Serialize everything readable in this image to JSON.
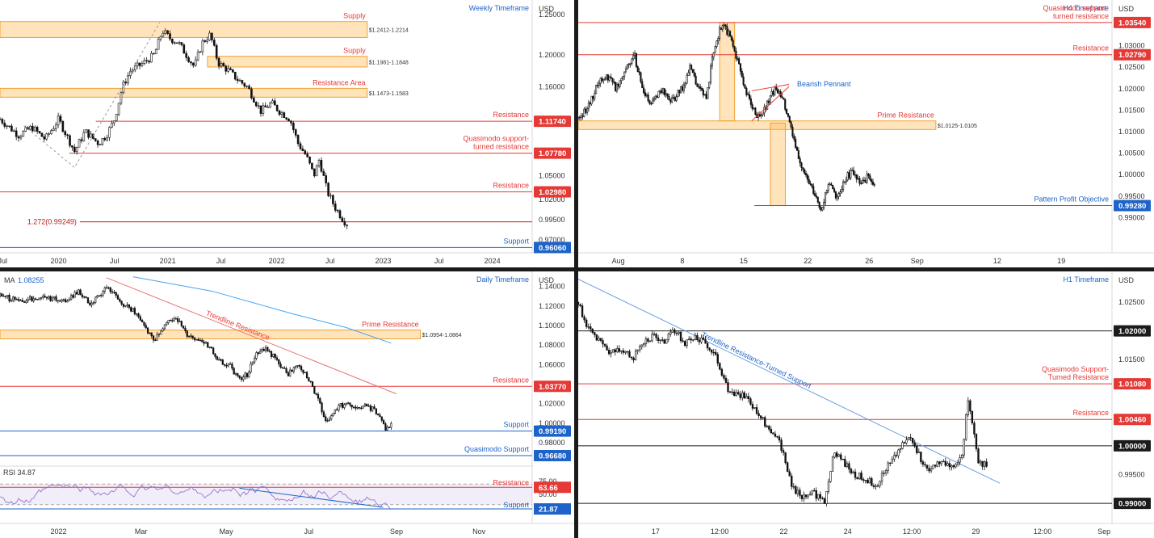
{
  "chart_data": [
    {
      "type": "candlestick",
      "title": "Weekly Timeframe",
      "currency": "USD",
      "ylim": [
        0.955,
        1.262
      ],
      "y_ticks": [
        {
          "v": 1.25,
          "l": "1.25000"
        },
        {
          "v": 1.2,
          "l": "1.20000"
        },
        {
          "v": 1.16,
          "l": "1.16000"
        },
        {
          "v": 1.05,
          "l": "1.05000"
        },
        {
          "v": 1.02,
          "l": "1.02000"
        },
        {
          "v": 0.995,
          "l": "0.99500"
        },
        {
          "v": 0.97,
          "l": "0.97000"
        }
      ],
      "x_ticks": [
        {
          "x": 0.005,
          "l": "Jul"
        },
        {
          "x": 0.11,
          "l": "2020"
        },
        {
          "x": 0.215,
          "l": "Jul"
        },
        {
          "x": 0.315,
          "l": "2021"
        },
        {
          "x": 0.415,
          "l": "Jul"
        },
        {
          "x": 0.52,
          "l": "2022"
        },
        {
          "x": 0.62,
          "l": "Jul"
        },
        {
          "x": 0.72,
          "l": "2023"
        },
        {
          "x": 0.825,
          "l": "Jul"
        },
        {
          "x": 0.925,
          "l": "2024"
        }
      ],
      "zones": [
        {
          "label": "Supply",
          "range_label": "$1.2412-1.2214",
          "y1": 1.2412,
          "y2": 1.2214,
          "x1": 0,
          "x2": 0.69
        },
        {
          "label": "Supply",
          "range_label": "$1.1981-1.1848",
          "y1": 1.1981,
          "y2": 1.1848,
          "x1": 0.39,
          "x2": 0.69
        },
        {
          "label": "Resistance Area",
          "range_label": "$1.1473-1.1583",
          "y1": 1.1583,
          "y2": 1.1473,
          "x1": 0,
          "x2": 0.69
        }
      ],
      "levels": [
        {
          "label": "Resistance",
          "value": 1.1174,
          "badge": "1.11740",
          "color": "#e53935",
          "x1": 0.18
        },
        {
          "label": "Quasimodo support-\nturned resistance",
          "value": 1.0778,
          "badge": "1.07780",
          "color": "#e53935",
          "x1": 0.13
        },
        {
          "label": "Resistance",
          "value": 1.0298,
          "badge": "1.02980",
          "color": "#e53935",
          "x1": 0
        },
        {
          "label": "1.272(0.99249)",
          "value": 0.99249,
          "badge": "",
          "color": "#b71c1c",
          "x1": 0.15
        },
        {
          "label": "Support",
          "value": 0.9606,
          "badge": "0.96060",
          "color": "#1e63c8",
          "x1": 0
        }
      ],
      "path": [
        [
          0,
          1.12
        ],
        [
          0.035,
          1.1
        ],
        [
          0.06,
          1.11
        ],
        [
          0.085,
          1.095
        ],
        [
          0.11,
          1.12
        ],
        [
          0.14,
          1.08
        ],
        [
          0.16,
          1.105
        ],
        [
          0.185,
          1.09
        ],
        [
          0.2,
          1.1
        ],
        [
          0.215,
          1.12
        ],
        [
          0.23,
          1.16
        ],
        [
          0.245,
          1.18
        ],
        [
          0.27,
          1.19
        ],
        [
          0.29,
          1.2
        ],
        [
          0.305,
          1.23
        ],
        [
          0.32,
          1.22
        ],
        [
          0.335,
          1.215
        ],
        [
          0.35,
          1.2
        ],
        [
          0.365,
          1.185
        ],
        [
          0.38,
          1.215
        ],
        [
          0.395,
          1.225
        ],
        [
          0.41,
          1.19
        ],
        [
          0.43,
          1.18
        ],
        [
          0.445,
          1.17
        ],
        [
          0.465,
          1.16
        ],
        [
          0.49,
          1.13
        ],
        [
          0.51,
          1.14
        ],
        [
          0.525,
          1.13
        ],
        [
          0.545,
          1.12
        ],
        [
          0.56,
          1.09
        ],
        [
          0.575,
          1.075
        ],
        [
          0.59,
          1.05
        ],
        [
          0.6,
          1.07
        ],
        [
          0.615,
          1.03
        ],
        [
          0.63,
          1.01
        ],
        [
          0.645,
          0.995
        ],
        [
          0.652,
          0.99
        ]
      ]
    },
    {
      "type": "candlestick",
      "title": "H4 Timeframe",
      "currency": "USD",
      "ylim": [
        0.982,
        1.0395
      ],
      "y_ticks": [
        {
          "v": 1.03,
          "l": "1.03000"
        },
        {
          "v": 1.025,
          "l": "1.02500"
        },
        {
          "v": 1.02,
          "l": "1.02000"
        },
        {
          "v": 1.015,
          "l": "1.01500"
        },
        {
          "v": 1.01,
          "l": "1.01000"
        },
        {
          "v": 1.005,
          "l": "1.00500"
        },
        {
          "v": 1.0,
          "l": "1.00000"
        },
        {
          "v": 0.995,
          "l": "0.99500"
        },
        {
          "v": 0.99,
          "l": "0.99000"
        }
      ],
      "x_ticks": [
        {
          "x": 0.075,
          "l": "Aug"
        },
        {
          "x": 0.195,
          "l": "8"
        },
        {
          "x": 0.31,
          "l": "15"
        },
        {
          "x": 0.43,
          "l": "22"
        },
        {
          "x": 0.545,
          "l": "26"
        },
        {
          "x": 0.635,
          "l": "Sep"
        },
        {
          "x": 0.785,
          "l": "12"
        },
        {
          "x": 0.905,
          "l": "19"
        }
      ],
      "zones": [
        {
          "label": "Prime Resistance",
          "range_label": "$1.0125-1.0105",
          "y1": 1.0125,
          "y2": 1.0105,
          "x1": 0,
          "x2": 0.67
        },
        {
          "label": "",
          "range_label": "",
          "y1": 1.0354,
          "y2": 1.0125,
          "x1": 0.265,
          "x2": 0.293
        },
        {
          "label": "",
          "range_label": "",
          "y1": 1.012,
          "y2": 0.9928,
          "x1": 0.36,
          "x2": 0.388
        }
      ],
      "levels": [
        {
          "label": "Quasimodo support-\nturned resistance",
          "value": 1.0354,
          "badge": "1.03540",
          "color": "#e53935",
          "x1": 0
        },
        {
          "label": "Resistance",
          "value": 1.0279,
          "badge": "1.02790",
          "color": "#e53935",
          "x1": 0
        },
        {
          "label": "Pattern Profit Objective",
          "value": 0.9928,
          "badge": "0.99280",
          "color": "#1e63c8",
          "x1": 0.33
        }
      ],
      "annotation": "Bearish Pennant",
      "path": [
        [
          0,
          1.013
        ],
        [
          0.02,
          1.016
        ],
        [
          0.04,
          1.022
        ],
        [
          0.06,
          1.023
        ],
        [
          0.07,
          1.02
        ],
        [
          0.09,
          1.025
        ],
        [
          0.105,
          1.028
        ],
        [
          0.12,
          1.02
        ],
        [
          0.135,
          1.016
        ],
        [
          0.155,
          1.02
        ],
        [
          0.175,
          1.017
        ],
        [
          0.195,
          1.02
        ],
        [
          0.21,
          1.025
        ],
        [
          0.225,
          1.02
        ],
        [
          0.24,
          1.018
        ],
        [
          0.255,
          1.03
        ],
        [
          0.27,
          1.035
        ],
        [
          0.285,
          1.032
        ],
        [
          0.3,
          1.026
        ],
        [
          0.31,
          1.02
        ],
        [
          0.325,
          1.016
        ],
        [
          0.34,
          1.013
        ],
        [
          0.355,
          1.017
        ],
        [
          0.37,
          1.02
        ],
        [
          0.385,
          1.017
        ],
        [
          0.395,
          1.012
        ],
        [
          0.41,
          1.005
        ],
        [
          0.425,
          1.0
        ],
        [
          0.44,
          0.996
        ],
        [
          0.455,
          0.992
        ],
        [
          0.47,
          0.998
        ],
        [
          0.485,
          0.994
        ],
        [
          0.5,
          0.999
        ],
        [
          0.515,
          1.001
        ],
        [
          0.53,
          0.998
        ],
        [
          0.545,
          1.0
        ],
        [
          0.555,
          0.997
        ]
      ]
    },
    {
      "type": "candlestick",
      "title": "Daily Timeframe",
      "currency": "USD",
      "indicator": {
        "label": "MA",
        "value": "1.08255"
      },
      "ylim": [
        0.9585,
        1.1505
      ],
      "y_ticks": [
        {
          "v": 1.14,
          "l": "1.14000"
        },
        {
          "v": 1.12,
          "l": "1.12000"
        },
        {
          "v": 1.1,
          "l": "1.10000"
        },
        {
          "v": 1.08,
          "l": "1.08000"
        },
        {
          "v": 1.06,
          "l": "1.06000"
        },
        {
          "v": 1.02,
          "l": "1.02000"
        },
        {
          "v": 1.0,
          "l": "1.00000"
        },
        {
          "v": 0.98,
          "l": "0.98000"
        }
      ],
      "x_ticks": [
        {
          "x": 0.11,
          "l": "2022"
        },
        {
          "x": 0.265,
          "l": "Mar"
        },
        {
          "x": 0.425,
          "l": "May"
        },
        {
          "x": 0.58,
          "l": "Jul"
        },
        {
          "x": 0.745,
          "l": "Sep"
        },
        {
          "x": 0.9,
          "l": "Nov"
        }
      ],
      "zones": [
        {
          "label": "Prime Resistance",
          "range_label": "$1.0954-1.0864",
          "y1": 1.0954,
          "y2": 1.0864,
          "x1": 0,
          "x2": 0.79
        }
      ],
      "levels": [
        {
          "label": "Resistance",
          "value": 1.0377,
          "badge": "1.03770",
          "color": "#e53935",
          "x1": 0
        },
        {
          "label": "Support",
          "value": 0.9919,
          "badge": "0.99190",
          "color": "#1e63c8",
          "x1": 0
        },
        {
          "label": "Quasimodo Support",
          "value": 0.9668,
          "badge": "0.96680",
          "color": "#1e63c8",
          "x1": 0
        }
      ],
      "trendline": {
        "label": "Trendline Resistance",
        "from": [
          0.2,
          1.149
        ],
        "to": [
          0.745,
          1.03
        ]
      },
      "ma": [
        [
          0.25,
          1.15
        ],
        [
          0.4,
          1.135
        ],
        [
          0.55,
          1.112
        ],
        [
          0.65,
          1.098
        ],
        [
          0.735,
          1.082
        ]
      ],
      "rsi": {
        "label": "RSI",
        "value": "34.87",
        "upper": "63.66",
        "lower": "21.87",
        "ticks": [
          "75.00",
          "50.00"
        ],
        "support_label": "Support",
        "resistance_label": "Resistance"
      },
      "path": [
        [
          0,
          1.13
        ],
        [
          0.04,
          1.125
        ],
        [
          0.08,
          1.13
        ],
        [
          0.12,
          1.125
        ],
        [
          0.15,
          1.135
        ],
        [
          0.17,
          1.12
        ],
        [
          0.2,
          1.14
        ],
        [
          0.225,
          1.125
        ],
        [
          0.25,
          1.115
        ],
        [
          0.27,
          1.1
        ],
        [
          0.29,
          1.085
        ],
        [
          0.31,
          1.1
        ],
        [
          0.33,
          1.11
        ],
        [
          0.35,
          1.09
        ],
        [
          0.37,
          1.085
        ],
        [
          0.39,
          1.08
        ],
        [
          0.41,
          1.065
        ],
        [
          0.43,
          1.06
        ],
        [
          0.45,
          1.045
        ],
        [
          0.465,
          1.05
        ],
        [
          0.48,
          1.07
        ],
        [
          0.5,
          1.075
        ],
        [
          0.52,
          1.065
        ],
        [
          0.54,
          1.05
        ],
        [
          0.56,
          1.06
        ],
        [
          0.58,
          1.045
        ],
        [
          0.6,
          1.02
        ],
        [
          0.615,
          1.0
        ],
        [
          0.63,
          1.015
        ],
        [
          0.65,
          1.02
        ],
        [
          0.67,
          1.015
        ],
        [
          0.69,
          1.018
        ],
        [
          0.71,
          1.01
        ],
        [
          0.725,
          0.995
        ],
        [
          0.735,
          1.0
        ]
      ]
    },
    {
      "type": "candlestick",
      "title": "H1 Timeframe",
      "currency": "USD",
      "ylim": [
        0.9865,
        1.0295
      ],
      "y_ticks": [
        {
          "v": 1.025,
          "l": "1.02500"
        },
        {
          "v": 1.015,
          "l": "1.01500"
        },
        {
          "v": 0.995,
          "l": "0.99500"
        }
      ],
      "x_ticks": [
        {
          "x": 0.145,
          "l": "17"
        },
        {
          "x": 0.265,
          "l": "12:00"
        },
        {
          "x": 0.385,
          "l": "22"
        },
        {
          "x": 0.505,
          "l": "24"
        },
        {
          "x": 0.625,
          "l": "12:00"
        },
        {
          "x": 0.745,
          "l": "29"
        },
        {
          "x": 0.87,
          "l": "12:00"
        },
        {
          "x": 0.985,
          "l": "Sep"
        }
      ],
      "levels": [
        {
          "label": "",
          "value": 1.02,
          "badge": "1.02000",
          "color": "#1b1b1b",
          "x1": 0
        },
        {
          "label": "Quasimodo Support-\nTurned Resistance",
          "value": 1.0108,
          "badge": "1.01080",
          "color": "#e53935",
          "x1": 0
        },
        {
          "label": "Resistance",
          "value": 1.0046,
          "badge": "1.00460",
          "color": "#e53935",
          "x1": 0
        },
        {
          "label": "",
          "value": 1.0,
          "badge": "1.00000",
          "color": "#1b1b1b",
          "x1": 0
        },
        {
          "label": "",
          "value": 0.99,
          "badge": "0.99000",
          "color": "#1b1b1b",
          "x1": 0
        }
      ],
      "trendline": {
        "label": "Trendline Resistance-Turned Support",
        "from": [
          0.0,
          1.029
        ],
        "to": [
          0.79,
          0.9935
        ]
      },
      "path": [
        [
          0,
          1.025
        ],
        [
          0.02,
          1.02
        ],
        [
          0.04,
          1.018
        ],
        [
          0.06,
          1.016
        ],
        [
          0.08,
          1.017
        ],
        [
          0.1,
          1.015
        ],
        [
          0.12,
          1.018
        ],
        [
          0.14,
          1.019
        ],
        [
          0.16,
          1.018
        ],
        [
          0.18,
          1.02
        ],
        [
          0.2,
          1.018
        ],
        [
          0.22,
          1.019
        ],
        [
          0.24,
          1.018
        ],
        [
          0.26,
          1.015
        ],
        [
          0.28,
          1.01
        ],
        [
          0.3,
          1.009
        ],
        [
          0.32,
          1.008
        ],
        [
          0.34,
          1.005
        ],
        [
          0.36,
          1.003
        ],
        [
          0.38,
          1.0
        ],
        [
          0.39,
          0.997
        ],
        [
          0.4,
          0.993
        ],
        [
          0.42,
          0.991
        ],
        [
          0.44,
          0.992
        ],
        [
          0.46,
          0.99
        ],
        [
          0.48,
          0.999
        ],
        [
          0.5,
          0.997
        ],
        [
          0.52,
          0.995
        ],
        [
          0.54,
          0.994
        ],
        [
          0.56,
          0.993
        ],
        [
          0.58,
          0.997
        ],
        [
          0.6,
          0.999
        ],
        [
          0.62,
          1.002
        ],
        [
          0.64,
          0.998
        ],
        [
          0.66,
          0.996
        ],
        [
          0.68,
          0.997
        ],
        [
          0.7,
          0.996
        ],
        [
          0.72,
          0.999
        ],
        [
          0.73,
          1.008
        ],
        [
          0.74,
          1.003
        ],
        [
          0.75,
          0.997
        ],
        [
          0.765,
          0.997
        ]
      ]
    }
  ]
}
